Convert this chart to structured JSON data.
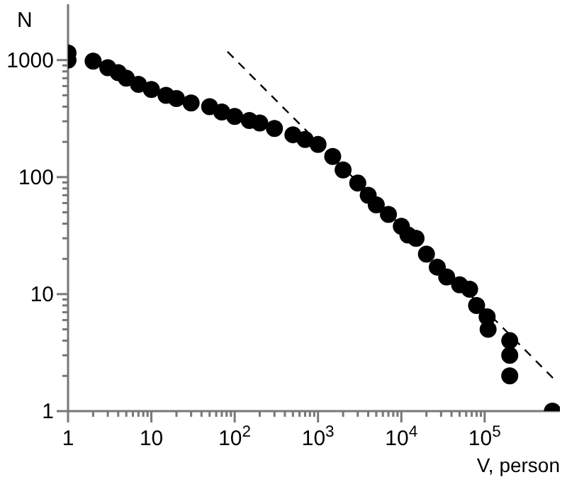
{
  "chart_data": {
    "type": "scatter",
    "xlabel": "V, person",
    "ylabel": "N",
    "log": "xy",
    "xlim": [
      1,
      800000
    ],
    "ylim": [
      1,
      3000
    ],
    "xticks": [
      1,
      {
        "value": 2,
        "label": null
      },
      {
        "value": 3,
        "label": null
      },
      {
        "value": 4,
        "label": null
      },
      {
        "value": 5,
        "label": null
      },
      {
        "value": 6,
        "label": null
      },
      {
        "value": 7,
        "label": null
      },
      {
        "value": 8,
        "label": null
      },
      {
        "value": 9,
        "label": null
      },
      10,
      {
        "value": 20,
        "label": null
      },
      {
        "value": 30,
        "label": null
      },
      {
        "value": 40,
        "label": null
      },
      {
        "value": 50,
        "label": null
      },
      {
        "value": 60,
        "label": null
      },
      {
        "value": 70,
        "label": null
      },
      {
        "value": 80,
        "label": null
      },
      {
        "value": 90,
        "label": null
      },
      {
        "value": 100,
        "label": "10$^{2}$"
      },
      {
        "value": 200,
        "label": null
      },
      {
        "value": 300,
        "label": null
      },
      {
        "value": 400,
        "label": null
      },
      {
        "value": 500,
        "label": null
      },
      {
        "value": 600,
        "label": null
      },
      {
        "value": 700,
        "label": null
      },
      {
        "value": 800,
        "label": null
      },
      {
        "value": 900,
        "label": null
      },
      {
        "value": 1000,
        "label": "10$^{3}$"
      },
      {
        "value": 2000,
        "label": null
      },
      {
        "value": 3000,
        "label": null
      },
      {
        "value": 4000,
        "label": null
      },
      {
        "value": 5000,
        "label": null
      },
      {
        "value": 6000,
        "label": null
      },
      {
        "value": 7000,
        "label": null
      },
      {
        "value": 8000,
        "label": null
      },
      {
        "value": 9000,
        "label": null
      },
      {
        "value": 10000,
        "label": "10$^{4}$"
      },
      {
        "value": 20000,
        "label": null
      },
      {
        "value": 30000,
        "label": null
      },
      {
        "value": 40000,
        "label": null
      },
      {
        "value": 50000,
        "label": null
      },
      {
        "value": 60000,
        "label": null
      },
      {
        "value": 70000,
        "label": null
      },
      {
        "value": 80000,
        "label": null
      },
      {
        "value": 90000,
        "label": null
      },
      {
        "value": 100000,
        "label": "10$^{5}$"
      }
    ],
    "yticks": [
      1,
      {
        "value": 2,
        "label": null
      },
      {
        "value": 3,
        "label": null
      },
      {
        "value": 4,
        "label": null
      },
      {
        "value": 5,
        "label": null
      },
      {
        "value": 6,
        "label": null
      },
      {
        "value": 7,
        "label": null
      },
      {
        "value": 8,
        "label": null
      },
      {
        "value": 9,
        "label": null
      },
      10,
      {
        "value": 20,
        "label": null
      },
      {
        "value": 30,
        "label": null
      },
      {
        "value": 40,
        "label": null
      },
      {
        "value": 50,
        "label": null
      },
      {
        "value": 60,
        "label": null
      },
      {
        "value": 70,
        "label": null
      },
      {
        "value": 80,
        "label": null
      },
      {
        "value": 90,
        "label": null
      },
      100,
      {
        "value": 200,
        "label": null
      },
      {
        "value": 300,
        "label": null
      },
      {
        "value": 400,
        "label": null
      },
      {
        "value": 500,
        "label": null
      },
      {
        "value": 600,
        "label": null
      },
      {
        "value": 700,
        "label": null
      },
      {
        "value": 800,
        "label": null
      },
      {
        "value": 900,
        "label": null
      },
      1000
    ],
    "series": [
      {
        "marker": "circle",
        "color": "#000000",
        "x": [
          1,
          1,
          2,
          3,
          4,
          5,
          7,
          10,
          15,
          20,
          30,
          50,
          70,
          100,
          150,
          200,
          300,
          500,
          700,
          1000,
          1500,
          2000,
          3000,
          4000,
          5000,
          7000,
          10000,
          12000,
          15000,
          20000,
          27000,
          35000,
          50000,
          66000,
          80000,
          107000,
          110000,
          200000,
          200000,
          200000,
          650000
        ],
        "values": [
          1150,
          1000,
          980,
          860,
          780,
          700,
          620,
          560,
          500,
          470,
          430,
          400,
          360,
          330,
          305,
          290,
          260,
          230,
          210,
          190,
          150,
          115,
          89,
          70,
          58,
          48,
          38,
          32,
          30,
          22,
          17,
          14,
          12,
          11,
          8,
          6.4,
          5,
          4,
          3,
          2,
          1
        ]
      },
      {
        "type": "line",
        "line_style": "dashed",
        "color": "#000000",
        "x": [
          82,
          700000
        ],
        "values": [
          1180,
          1.84
        ]
      }
    ]
  }
}
